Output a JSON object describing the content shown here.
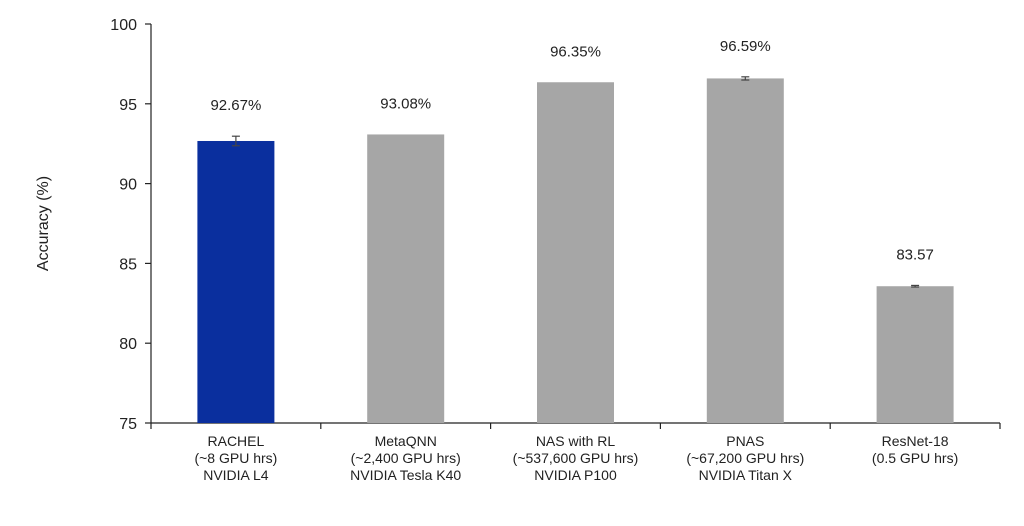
{
  "chart_data": {
    "type": "bar",
    "ylabel": "Accuracy (%)",
    "ylim": [
      75,
      100
    ],
    "yticks": [
      75,
      80,
      85,
      90,
      95,
      100
    ],
    "grid": false,
    "categories": [
      [
        "RACHEL",
        "(~8 GPU hrs)",
        "NVIDIA L4"
      ],
      [
        "MetaQNN",
        "(~2,400 GPU hrs)",
        "NVIDIA Tesla K40"
      ],
      [
        "NAS with RL",
        "(~537,600 GPU hrs)",
        "NVIDIA P100"
      ],
      [
        "PNAS",
        "(~67,200 GPU hrs)",
        "NVIDIA Titan X"
      ],
      [
        "ResNet-18",
        "(0.5 GPU hrs)"
      ]
    ],
    "values": [
      92.67,
      93.08,
      96.35,
      96.59,
      83.57
    ],
    "error": [
      0.3,
      0,
      0,
      0.1,
      0.05
    ],
    "data_labels": [
      "92.67%",
      "93.08%",
      "96.35%",
      "96.59%",
      "83.57"
    ],
    "colors": [
      "#0a2f9e",
      "#a6a6a6",
      "#a6a6a6",
      "#a6a6a6",
      "#a6a6a6"
    ]
  }
}
